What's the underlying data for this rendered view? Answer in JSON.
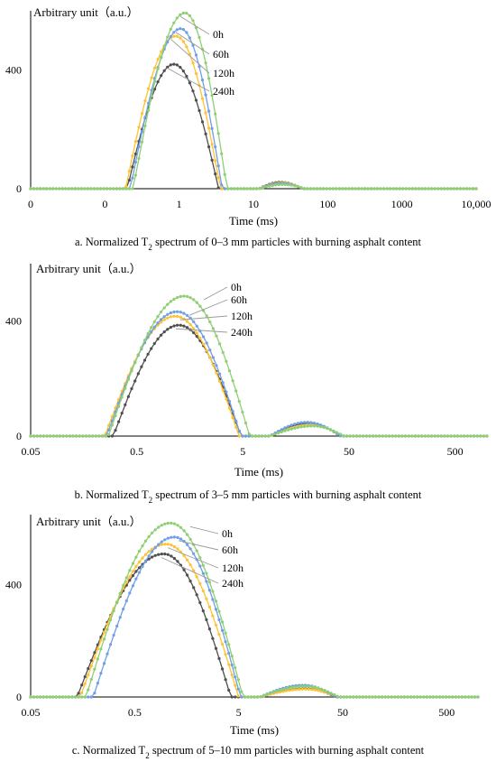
{
  "colors": {
    "0h": "#8fcf73",
    "60h": "#6f9fe4",
    "120h": "#ffc233",
    "240h": "#4f4f4f",
    "axis": "#000000",
    "leader": "#9a9a9a"
  },
  "chart_data": [
    {
      "type": "line",
      "x_scale": "log",
      "ylabel": "Arbitrary unit（a.u.）",
      "xlabel": "Time (ms)",
      "caption_pre": "a. Normalized T",
      "caption_sub": "2",
      "caption_post": " spectrum of 0–3 mm particles with burning asphalt content",
      "xlim": [
        0.01,
        10000
      ],
      "ylim": [
        0,
        600
      ],
      "x_ticks": [
        {
          "value": 0.01,
          "label": "0"
        },
        {
          "value": 0.1,
          "label": "0"
        },
        {
          "value": 1,
          "label": "1"
        },
        {
          "value": 10,
          "label": "10"
        },
        {
          "value": 100,
          "label": "100"
        },
        {
          "value": 1000,
          "label": "1000"
        },
        {
          "value": 10000,
          "label": "10,000"
        }
      ],
      "y_ticks": [
        {
          "value": 0,
          "label": "0"
        },
        {
          "value": 400,
          "label": "400"
        }
      ],
      "series": [
        {
          "name": "0h",
          "peaks": [
            {
              "start": 0.24,
              "center": 1.2,
              "end": 4.4,
              "height": 593
            },
            {
              "start": 12,
              "center": 25,
              "end": 50,
              "height": 14
            }
          ]
        },
        {
          "name": "60h",
          "peaks": [
            {
              "start": 0.22,
              "center": 1.05,
              "end": 3.8,
              "height": 540
            },
            {
              "start": 12,
              "center": 24,
              "end": 48,
              "height": 18
            }
          ]
        },
        {
          "name": "120h",
          "peaks": [
            {
              "start": 0.19,
              "center": 0.9,
              "end": 3.6,
              "height": 515
            },
            {
              "start": 12,
              "center": 24,
              "end": 48,
              "height": 20
            }
          ]
        },
        {
          "name": "240h",
          "peaks": [
            {
              "start": 0.2,
              "center": 0.85,
              "end": 3.4,
              "height": 420
            },
            {
              "start": 12,
              "center": 23,
              "end": 46,
              "height": 22
            }
          ]
        }
      ]
    },
    {
      "type": "line",
      "x_scale": "log",
      "ylabel": "Arbitrary unit（a.u.）",
      "xlabel": "Time (ms)",
      "caption_pre": "b. Normalized T",
      "caption_sub": "2",
      "caption_post": " spectrum of 3–5 mm particles with burning asphalt content",
      "xlim": [
        0.05,
        1000
      ],
      "ylim": [
        0,
        600
      ],
      "x_ticks": [
        {
          "value": 0.05,
          "label": "0.05"
        },
        {
          "value": 0.5,
          "label": "0.5"
        },
        {
          "value": 5,
          "label": "5"
        },
        {
          "value": 50,
          "label": "50"
        },
        {
          "value": 500,
          "label": "500"
        }
      ],
      "y_ticks": [
        {
          "value": 0,
          "label": "0"
        },
        {
          "value": 400,
          "label": "400"
        }
      ],
      "series": [
        {
          "name": "0h",
          "peaks": [
            {
              "start": 0.27,
              "center": 1.4,
              "end": 5.8,
              "height": 487
            },
            {
              "start": 9,
              "center": 23,
              "end": 45,
              "height": 35
            }
          ]
        },
        {
          "name": "60h",
          "peaks": [
            {
              "start": 0.26,
              "center": 1.2,
              "end": 4.8,
              "height": 433
            },
            {
              "start": 9,
              "center": 20,
              "end": 42,
              "height": 48
            }
          ]
        },
        {
          "name": "120h",
          "peaks": [
            {
              "start": 0.25,
              "center": 1.15,
              "end": 4.6,
              "height": 417
            },
            {
              "start": 9,
              "center": 22,
              "end": 44,
              "height": 38
            }
          ]
        },
        {
          "name": "240h",
          "peaks": [
            {
              "start": 0.3,
              "center": 1.25,
              "end": 4.8,
              "height": 386
            },
            {
              "start": 9,
              "center": 21,
              "end": 42,
              "height": 45
            }
          ]
        }
      ]
    },
    {
      "type": "line",
      "x_scale": "log",
      "ylabel": "Arbitrary unit（a.u.）",
      "xlabel": "Time (ms)",
      "caption_pre": "c. Normalized T",
      "caption_sub": "2",
      "caption_post": " spectrum of 5–10 mm particles with burning asphalt content",
      "xlim": [
        0.05,
        1000
      ],
      "ylim": [
        0,
        650
      ],
      "x_ticks": [
        {
          "value": 0.05,
          "label": "0.05"
        },
        {
          "value": 0.5,
          "label": "0.5"
        },
        {
          "value": 5,
          "label": "5"
        },
        {
          "value": 50,
          "label": "50"
        },
        {
          "value": 500,
          "label": "500"
        }
      ],
      "y_ticks": [
        {
          "value": 0,
          "label": "0"
        },
        {
          "value": 400,
          "label": "400"
        }
      ],
      "series": [
        {
          "name": "0h",
          "peaks": [
            {
              "start": 0.17,
              "center": 1.1,
              "end": 5.5,
              "height": 620
            },
            {
              "start": 8,
              "center": 22,
              "end": 46,
              "height": 38
            }
          ]
        },
        {
          "name": "60h",
          "peaks": [
            {
              "start": 0.2,
              "center": 1.2,
              "end": 5.2,
              "height": 570
            },
            {
              "start": 8,
              "center": 21,
              "end": 44,
              "height": 42
            }
          ]
        },
        {
          "name": "120h",
          "peaks": [
            {
              "start": 0.15,
              "center": 1.0,
              "end": 5.0,
              "height": 545
            },
            {
              "start": 8,
              "center": 22,
              "end": 46,
              "height": 28
            }
          ]
        },
        {
          "name": "240h",
          "peaks": [
            {
              "start": 0.14,
              "center": 0.95,
              "end": 4.2,
              "height": 510
            },
            {
              "start": 8,
              "center": 22,
              "end": 44,
              "height": 30
            }
          ]
        }
      ]
    }
  ]
}
